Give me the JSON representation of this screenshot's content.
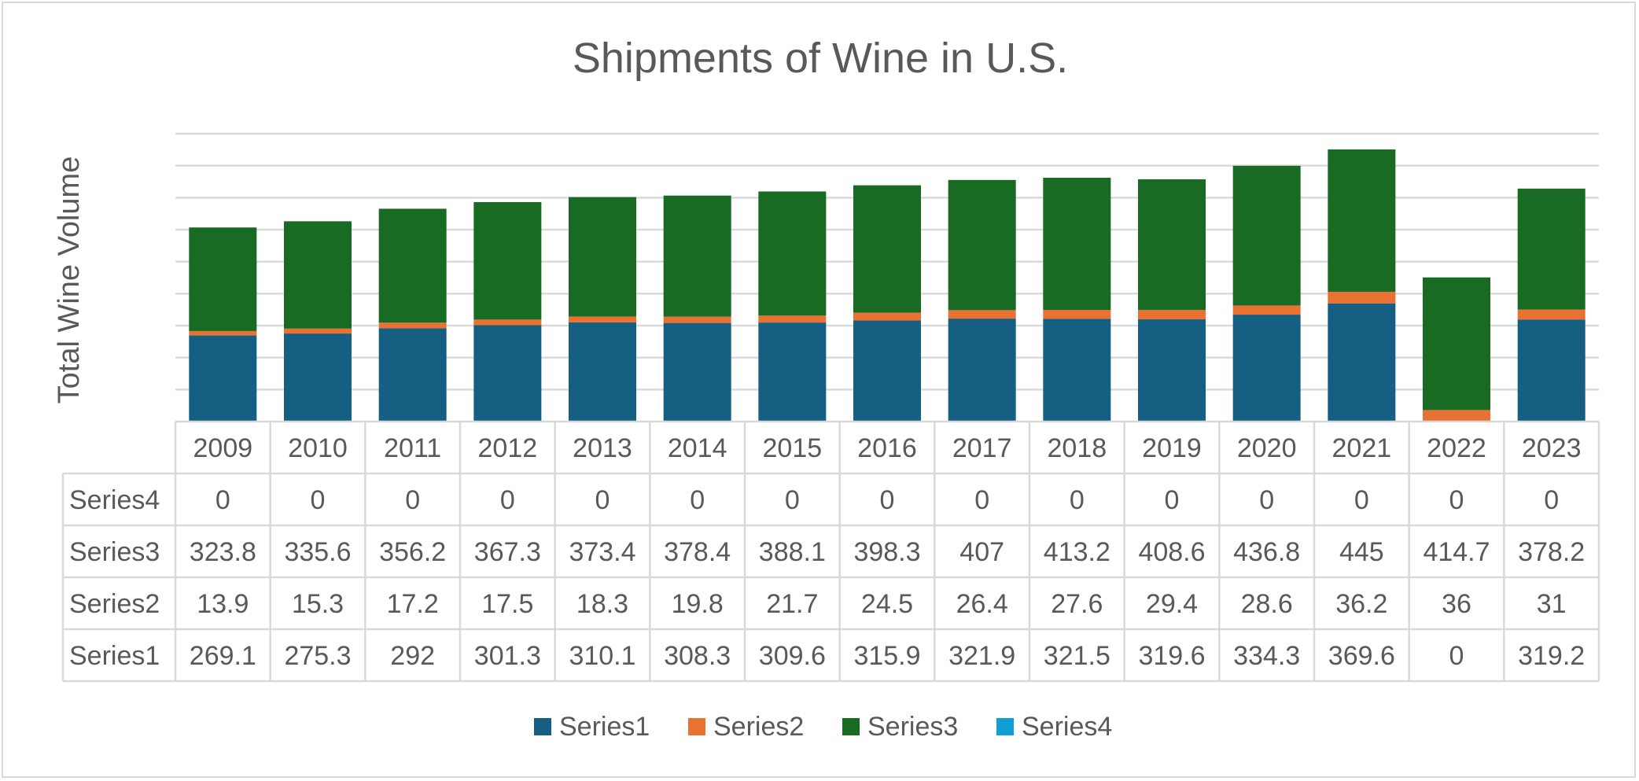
{
  "chart_data": {
    "type": "bar",
    "stacked": true,
    "title": "Shipments of Wine in U.S.",
    "ylabel": "Total Wine Volume",
    "xlabel": "",
    "categories": [
      "2009",
      "2010",
      "2011",
      "2012",
      "2013",
      "2014",
      "2015",
      "2016",
      "2017",
      "2018",
      "2019",
      "2020",
      "2021",
      "2022",
      "2023"
    ],
    "series": [
      {
        "name": "Series1",
        "color": "#156082",
        "values": [
          269.1,
          275.3,
          292,
          301.3,
          310.1,
          308.3,
          309.6,
          315.9,
          321.9,
          321.5,
          319.6,
          334.3,
          369.6,
          0,
          319.2
        ]
      },
      {
        "name": "Series2",
        "color": "#E97132",
        "values": [
          13.9,
          15.3,
          17.2,
          17.5,
          18.3,
          19.8,
          21.7,
          24.5,
          26.4,
          27.6,
          29.4,
          28.6,
          36.2,
          36,
          31
        ]
      },
      {
        "name": "Series3",
        "color": "#196B24",
        "values": [
          323.8,
          335.6,
          356.2,
          367.3,
          373.4,
          378.4,
          388.1,
          398.3,
          407,
          413.2,
          408.6,
          436.8,
          445,
          414.7,
          378.2
        ]
      },
      {
        "name": "Series4",
        "color": "#0F9ED5",
        "values": [
          0,
          0,
          0,
          0,
          0,
          0,
          0,
          0,
          0,
          0,
          0,
          0,
          0,
          0,
          0
        ]
      }
    ],
    "table_row_order": [
      "Series4",
      "Series3",
      "Series2",
      "Series1"
    ],
    "ylim": [
      0,
      900
    ],
    "gridlines": true,
    "y_tick_labels_shown": false,
    "data_table": true,
    "legend_position": "bottom"
  }
}
